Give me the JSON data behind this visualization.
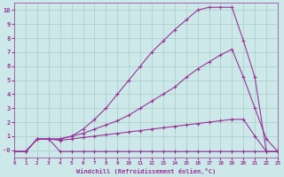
{
  "background_color": "#cce8e8",
  "grid_color": "#aacccc",
  "line_color": "#993399",
  "marker": "+",
  "xlabel": "Windchill (Refroidissement éolien,°C)",
  "xlim": [
    0,
    23
  ],
  "ylim": [
    -0.5,
    10.5
  ],
  "yticks": [
    0,
    1,
    2,
    3,
    4,
    5,
    6,
    7,
    8,
    9,
    10
  ],
  "xticks": [
    0,
    1,
    2,
    3,
    4,
    5,
    6,
    7,
    8,
    9,
    10,
    11,
    12,
    13,
    14,
    15,
    16,
    17,
    18,
    19,
    20,
    21,
    22,
    23
  ],
  "series": [
    {
      "name": "line_flat",
      "x": [
        0,
        1,
        2,
        3,
        4,
        5,
        6,
        7,
        8,
        9,
        10,
        11,
        12,
        13,
        14,
        15,
        16,
        17,
        18,
        19,
        20,
        21,
        22,
        23
      ],
      "y": [
        -0.1,
        -0.1,
        0.8,
        0.8,
        -0.1,
        -0.1,
        -0.1,
        -0.1,
        -0.1,
        -0.1,
        -0.1,
        -0.1,
        -0.1,
        -0.1,
        -0.1,
        -0.1,
        -0.1,
        -0.1,
        -0.1,
        -0.1,
        -0.1,
        -0.1,
        -0.1,
        -0.1
      ]
    },
    {
      "name": "line_low",
      "x": [
        0,
        1,
        2,
        3,
        4,
        5,
        6,
        7,
        8,
        9,
        10,
        11,
        12,
        13,
        14,
        15,
        16,
        17,
        18,
        19,
        20,
        21,
        22,
        23
      ],
      "y": [
        -0.1,
        -0.1,
        0.8,
        0.8,
        0.7,
        0.8,
        0.9,
        1.0,
        1.1,
        1.2,
        1.3,
        1.4,
        1.5,
        1.6,
        1.7,
        1.8,
        1.9,
        2.0,
        2.1,
        2.2,
        2.2,
        1.0,
        -0.1,
        -0.1
      ]
    },
    {
      "name": "line_mid",
      "x": [
        0,
        1,
        2,
        3,
        4,
        5,
        6,
        7,
        8,
        9,
        10,
        11,
        12,
        13,
        14,
        15,
        16,
        17,
        18,
        19,
        20,
        21,
        22,
        23
      ],
      "y": [
        -0.1,
        -0.1,
        0.8,
        0.8,
        0.8,
        1.0,
        1.2,
        1.5,
        1.8,
        2.1,
        2.5,
        3.0,
        3.5,
        4.0,
        4.5,
        5.2,
        5.8,
        6.3,
        6.8,
        7.2,
        5.2,
        3.0,
        0.8,
        -0.1
      ]
    },
    {
      "name": "line_high",
      "x": [
        0,
        1,
        2,
        3,
        4,
        5,
        6,
        7,
        8,
        9,
        10,
        11,
        12,
        13,
        14,
        15,
        16,
        17,
        18,
        19,
        20,
        21,
        22,
        23
      ],
      "y": [
        -0.1,
        -0.1,
        0.8,
        0.8,
        0.8,
        1.0,
        1.5,
        2.2,
        3.0,
        4.0,
        5.0,
        6.0,
        7.0,
        7.8,
        8.6,
        9.3,
        10.0,
        10.2,
        10.2,
        10.2,
        7.8,
        5.2,
        -0.1,
        -0.1
      ]
    }
  ]
}
